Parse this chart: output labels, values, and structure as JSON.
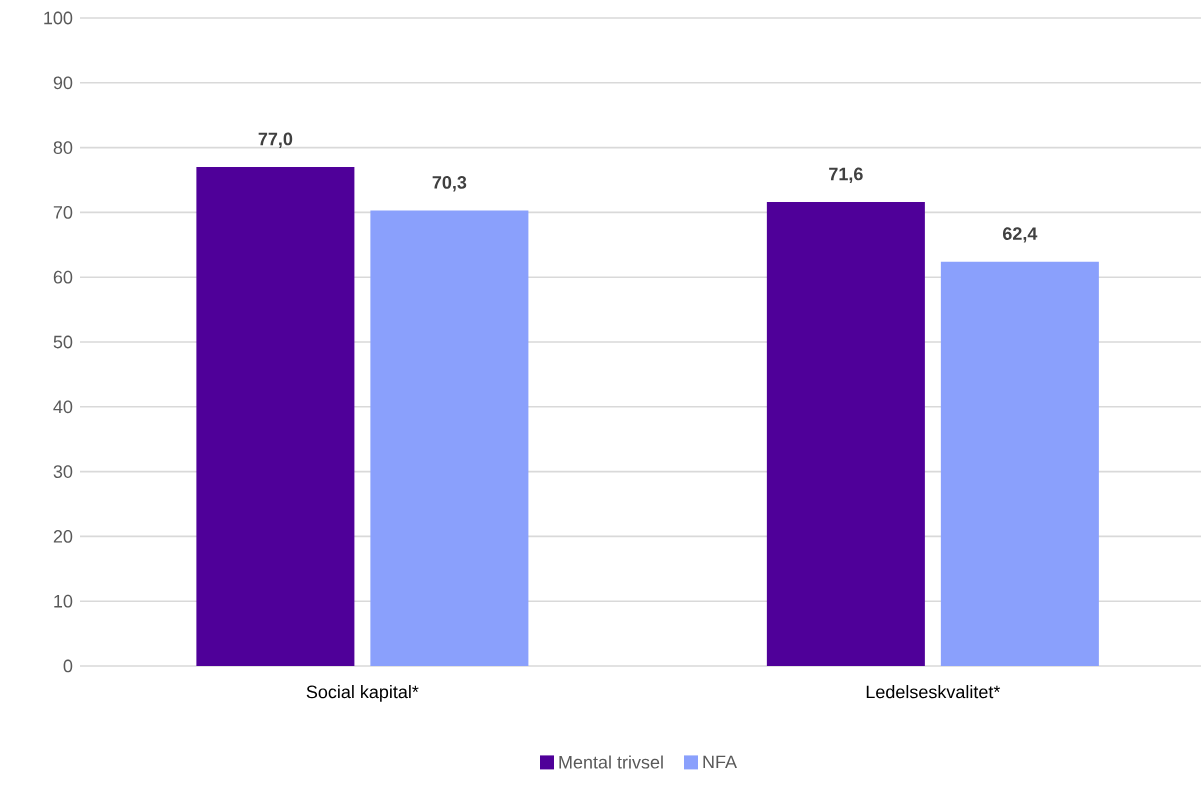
{
  "chart_data": {
    "type": "bar",
    "categories": [
      "Social kapital*",
      "Ledelseskvalitet*"
    ],
    "series": [
      {
        "name": "Mental trivsel",
        "color": "#4f0099",
        "values": [
          77.0,
          71.6
        ],
        "value_labels": [
          "77,0",
          "71,6"
        ]
      },
      {
        "name": "NFA",
        "color": "#8aa0fc",
        "values": [
          70.3,
          62.4
        ],
        "value_labels": [
          "70,3",
          "62,4"
        ]
      }
    ],
    "ylim": [
      0,
      100
    ],
    "yticks": [
      0,
      10,
      20,
      30,
      40,
      50,
      60,
      70,
      80,
      90,
      100
    ],
    "grid": "y",
    "legend": "bottom"
  }
}
